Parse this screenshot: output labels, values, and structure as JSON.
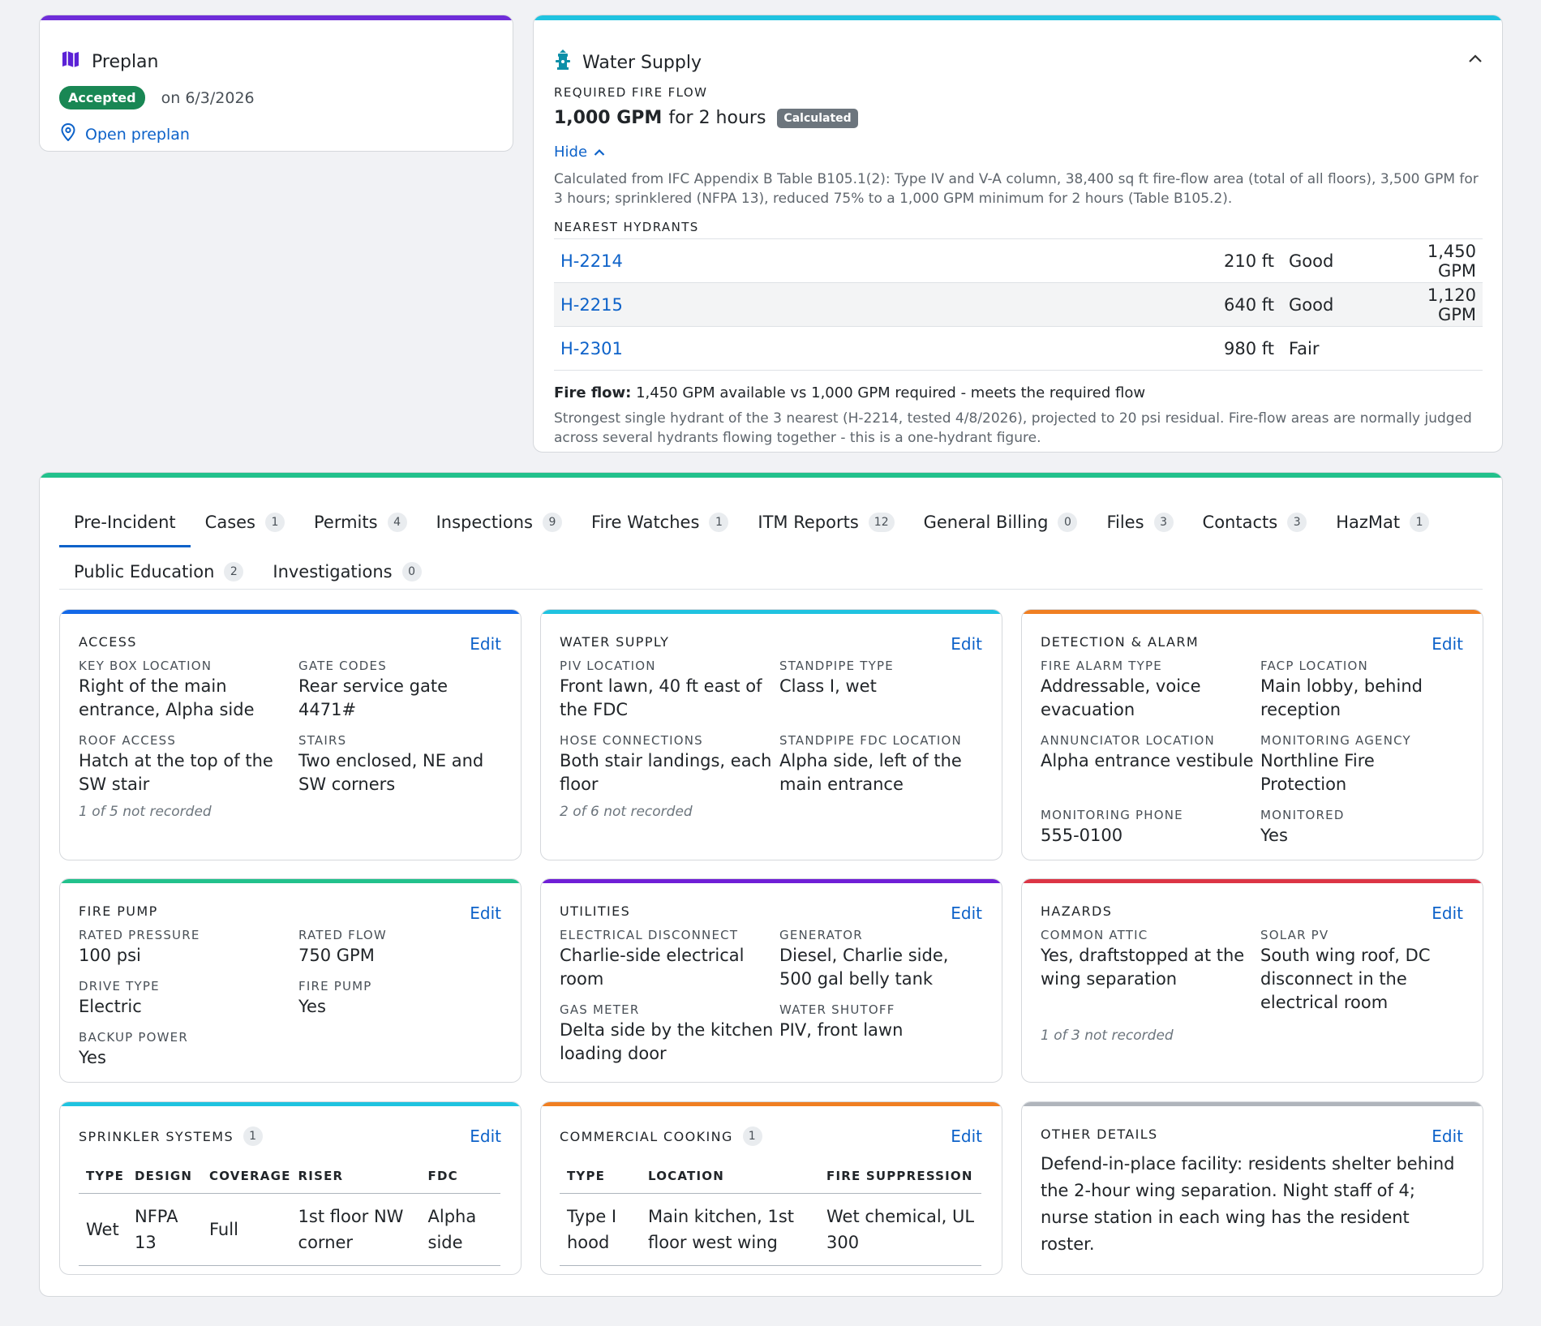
{
  "preplan": {
    "title": "Preplan",
    "status": "Accepted",
    "date": "on 6/3/2026",
    "open_link": "Open preplan",
    "accent": "#6f2dd9"
  },
  "water_supply": {
    "title": "Water Supply",
    "required_label": "REQUIRED FIRE FLOW",
    "flow_value": "1,000 GPM",
    "flow_duration": "for 2 hours",
    "calculated_badge": "Calculated",
    "hide_label": "Hide",
    "calc_note": "Calculated from IFC Appendix B Table B105.1(2): Type IV and V-A column, 38,400 sq ft fire-flow area (total of all floors), 3,500 GPM for 3 hours; sprinklered (NFPA 13), reduced 75% to a 1,000 GPM minimum for 2 hours (Table B105.2).",
    "nearest_label": "NEAREST HYDRANTS",
    "hydrants": [
      {
        "id": "H-2214",
        "distance": "210 ft",
        "condition": "Good",
        "flow": "1,450 GPM"
      },
      {
        "id": "H-2215",
        "distance": "640 ft",
        "condition": "Good",
        "flow": "1,120 GPM"
      },
      {
        "id": "H-2301",
        "distance": "980 ft",
        "condition": "Fair",
        "flow": ""
      }
    ],
    "fire_flow_label": "Fire flow:",
    "fire_flow_text": "1,450 GPM available vs 1,000 GPM required - meets the required flow",
    "fire_flow_note": "Strongest single hydrant of the 3 nearest (H-2214, tested 4/8/2026), projected to 20 psi residual. Fire-flow areas are normally judged across several hydrants flowing together - this is a one-hydrant figure.",
    "accent": "#1fc3e0"
  },
  "main": {
    "accent": "#22c18c",
    "tabs": [
      {
        "label": "Pre-Incident",
        "count": null
      },
      {
        "label": "Cases",
        "count": "1"
      },
      {
        "label": "Permits",
        "count": "4"
      },
      {
        "label": "Inspections",
        "count": "9"
      },
      {
        "label": "Fire Watches",
        "count": "1"
      },
      {
        "label": "ITM Reports",
        "count": "12"
      },
      {
        "label": "General Billing",
        "count": "0"
      },
      {
        "label": "Files",
        "count": "3"
      },
      {
        "label": "Contacts",
        "count": "3"
      },
      {
        "label": "HazMat",
        "count": "1"
      },
      {
        "label": "Public Education",
        "count": "2"
      },
      {
        "label": "Investigations",
        "count": "0"
      }
    ],
    "edit_label": "Edit",
    "access": {
      "title": "ACCESS",
      "color": "#1368e8",
      "fields": [
        {
          "k": "KEY BOX LOCATION",
          "v": "Right of the main entrance, Alpha side"
        },
        {
          "k": "GATE CODES",
          "v": "Rear service gate 4471#"
        },
        {
          "k": "ROOF ACCESS",
          "v": "Hatch at the top of the SW stair"
        },
        {
          "k": "STAIRS",
          "v": "Two enclosed, NE and SW corners"
        }
      ],
      "not_recorded": "1 of 5 not recorded"
    },
    "water": {
      "title": "WATER SUPPLY",
      "color": "#1fc3e0",
      "fields": [
        {
          "k": "PIV LOCATION",
          "v": "Front lawn, 40 ft east of the FDC"
        },
        {
          "k": "STANDPIPE TYPE",
          "v": "Class I, wet"
        },
        {
          "k": "HOSE CONNECTIONS",
          "v": "Both stair landings, each floor"
        },
        {
          "k": "STANDPIPE FDC LOCATION",
          "v": "Alpha side, left of the main entrance"
        }
      ],
      "not_recorded": "2 of 6 not recorded"
    },
    "detection": {
      "title": "DETECTION & ALARM",
      "color": "#f07f22",
      "fields": [
        {
          "k": "FIRE ALARM TYPE",
          "v": "Addressable, voice evacuation"
        },
        {
          "k": "FACP LOCATION",
          "v": "Main lobby, behind reception"
        },
        {
          "k": "ANNUNCIATOR LOCATION",
          "v": "Alpha entrance vestibule"
        },
        {
          "k": "MONITORING AGENCY",
          "v": "Northline Fire Protection"
        },
        {
          "k": "MONITORING PHONE",
          "v": "555-0100"
        },
        {
          "k": "MONITORED",
          "v": "Yes"
        }
      ]
    },
    "pump": {
      "title": "FIRE PUMP",
      "color": "#22c18c",
      "fields": [
        {
          "k": "RATED PRESSURE",
          "v": "100 psi"
        },
        {
          "k": "RATED FLOW",
          "v": "750 GPM"
        },
        {
          "k": "DRIVE TYPE",
          "v": "Electric"
        },
        {
          "k": "FIRE PUMP",
          "v": "Yes"
        },
        {
          "k": "BACKUP POWER",
          "v": "Yes"
        }
      ]
    },
    "utilities": {
      "title": "UTILITIES",
      "color": "#6f1fd6",
      "fields": [
        {
          "k": "ELECTRICAL DISCONNECT",
          "v": "Charlie-side electrical room"
        },
        {
          "k": "GENERATOR",
          "v": "Diesel, Charlie side, 500 gal belly tank"
        },
        {
          "k": "GAS METER",
          "v": "Delta side by the kitchen loading door"
        },
        {
          "k": "WATER SHUTOFF",
          "v": "PIV, front lawn"
        }
      ]
    },
    "hazards": {
      "title": "HAZARDS",
      "color": "#dc3545",
      "fields": [
        {
          "k": "COMMON ATTIC",
          "v": "Yes, draftstopped at the wing separation"
        },
        {
          "k": "SOLAR PV",
          "v": "South wing roof, DC disconnect in the electrical room"
        }
      ],
      "not_recorded": "1 of 3 not recorded"
    },
    "sprinkler": {
      "title": "SPRINKLER SYSTEMS",
      "count": "1",
      "color": "#1fc3e0",
      "headers": [
        "TYPE",
        "DESIGN",
        "COVERAGE",
        "RISER",
        "FDC"
      ],
      "rows": [
        [
          "Wet",
          "NFPA 13",
          "Full",
          "1st floor NW corner",
          "Alpha side"
        ]
      ]
    },
    "cooking": {
      "title": "COMMERCIAL COOKING",
      "count": "1",
      "color": "#f07f22",
      "headers": [
        "TYPE",
        "LOCATION",
        "FIRE SUPPRESSION"
      ],
      "rows": [
        [
          "Type I hood",
          "Main kitchen, 1st floor west wing",
          "Wet chemical, UL 300"
        ]
      ]
    },
    "other": {
      "title": "OTHER DETAILS",
      "color": "#b0b5bc",
      "text": "Defend-in-place facility: residents shelter behind the 2-hour wing separation. Night staff of 4; nurse station in each wing has the resident roster."
    }
  }
}
